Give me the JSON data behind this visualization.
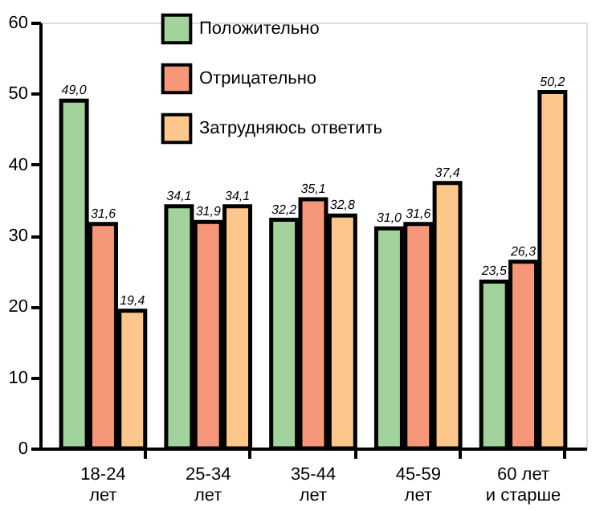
{
  "chart_data": {
    "type": "bar",
    "categories": [
      "18-24\nлет",
      "25-34\nлет",
      "35-44\nлет",
      "45-59\nлет",
      "60 лет\nи старше"
    ],
    "series": [
      {
        "name": "Положительно",
        "color": "#a2d39c",
        "values": [
          49.0,
          34.1,
          32.2,
          31.0,
          23.5
        ],
        "value_labels": [
          "49,0",
          "34,1",
          "32,2",
          "31,0",
          "23,5"
        ]
      },
      {
        "name": "Отрицательно",
        "color": "#f7977a",
        "values": [
          31.6,
          31.9,
          35.1,
          31.6,
          26.3
        ],
        "value_labels": [
          "31,6",
          "31,9",
          "35,1",
          "31,6",
          "26,3"
        ]
      },
      {
        "name": "Затрудняюсь ответить",
        "color": "#fdc68a",
        "values": [
          19.4,
          34.1,
          32.8,
          37.4,
          50.2
        ],
        "value_labels": [
          "19,4",
          "34,1",
          "32,8",
          "37,4",
          "50,2"
        ]
      }
    ],
    "ylim": [
      0,
      60
    ],
    "yticks": [
      0,
      10,
      20,
      30,
      40,
      50,
      60
    ],
    "grid": false,
    "legend": "top"
  }
}
